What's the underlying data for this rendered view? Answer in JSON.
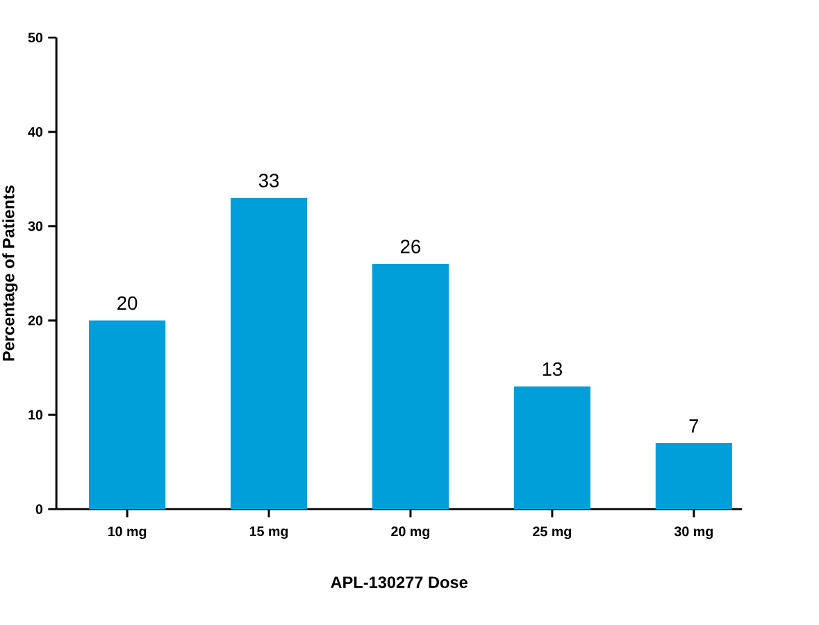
{
  "chart_data": {
    "type": "bar",
    "xlabel": "APL-130277 Dose",
    "ylabel": "Percentage of Patients",
    "categories": [
      "10 mg",
      "15 mg",
      "20 mg",
      "25 mg",
      "30 mg"
    ],
    "values": [
      20,
      33,
      26,
      13,
      7
    ],
    "color": "#009fdb",
    "data_labels": true,
    "ylim": [
      0,
      50
    ],
    "yticks": [
      0,
      10,
      20,
      30,
      40,
      50
    ],
    "grid": false
  }
}
